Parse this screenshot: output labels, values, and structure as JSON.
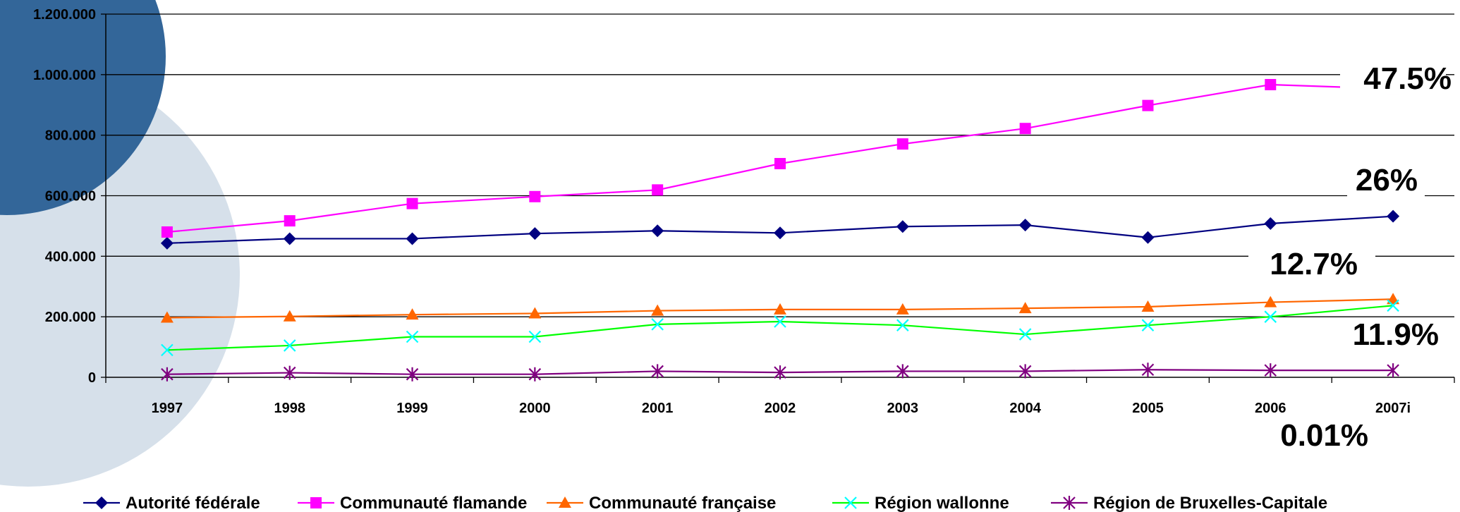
{
  "chart_data": {
    "type": "line",
    "categories": [
      "1997",
      "1998",
      "1999",
      "2000",
      "2001",
      "2002",
      "2003",
      "2004",
      "2005",
      "2006",
      "2007i"
    ],
    "ylim": [
      0,
      1200000
    ],
    "yticks": [
      0,
      200000,
      400000,
      600000,
      800000,
      1000000,
      1200000
    ],
    "ytick_labels": [
      "0",
      "200.000",
      "400.000",
      "600.000",
      "800.000",
      "1.000.000",
      "1.200.000"
    ],
    "grid": true,
    "legend_position": "bottom",
    "series": [
      {
        "name": "Autorité fédérale",
        "color": "#000080",
        "marker": "diamond",
        "values": [
          443000,
          458000,
          458000,
          475000,
          484000,
          477000,
          498000,
          503000,
          462000,
          508000,
          532000
        ]
      },
      {
        "name": "Communauté flamande",
        "color": "#FF00FF",
        "marker": "square",
        "values": [
          480000,
          517000,
          574000,
          597000,
          619000,
          706000,
          771000,
          822000,
          898000,
          967000,
          953000
        ]
      },
      {
        "name": "Communauté française",
        "color": "#FF6600",
        "marker": "triangle",
        "values": [
          197000,
          201000,
          207000,
          211000,
          220000,
          224000,
          224000,
          228000,
          233000,
          248000,
          258000
        ]
      },
      {
        "name": "Région wallonne",
        "color": "#00FF00",
        "marker_color": "#00FFFF",
        "marker": "x",
        "values": [
          90000,
          105000,
          134000,
          134000,
          175000,
          184000,
          172000,
          142000,
          172000,
          200000,
          237000
        ]
      },
      {
        "name": "Région de Bruxelles-Capitale",
        "color": "#800080",
        "marker": "star",
        "values": [
          10000,
          15000,
          10000,
          10000,
          20000,
          16000,
          20000,
          20000,
          25000,
          23000,
          23000
        ]
      }
    ],
    "annotations": [
      "47.5%",
      "26%",
      "12.7%",
      "11.9%",
      "0.01%"
    ]
  }
}
